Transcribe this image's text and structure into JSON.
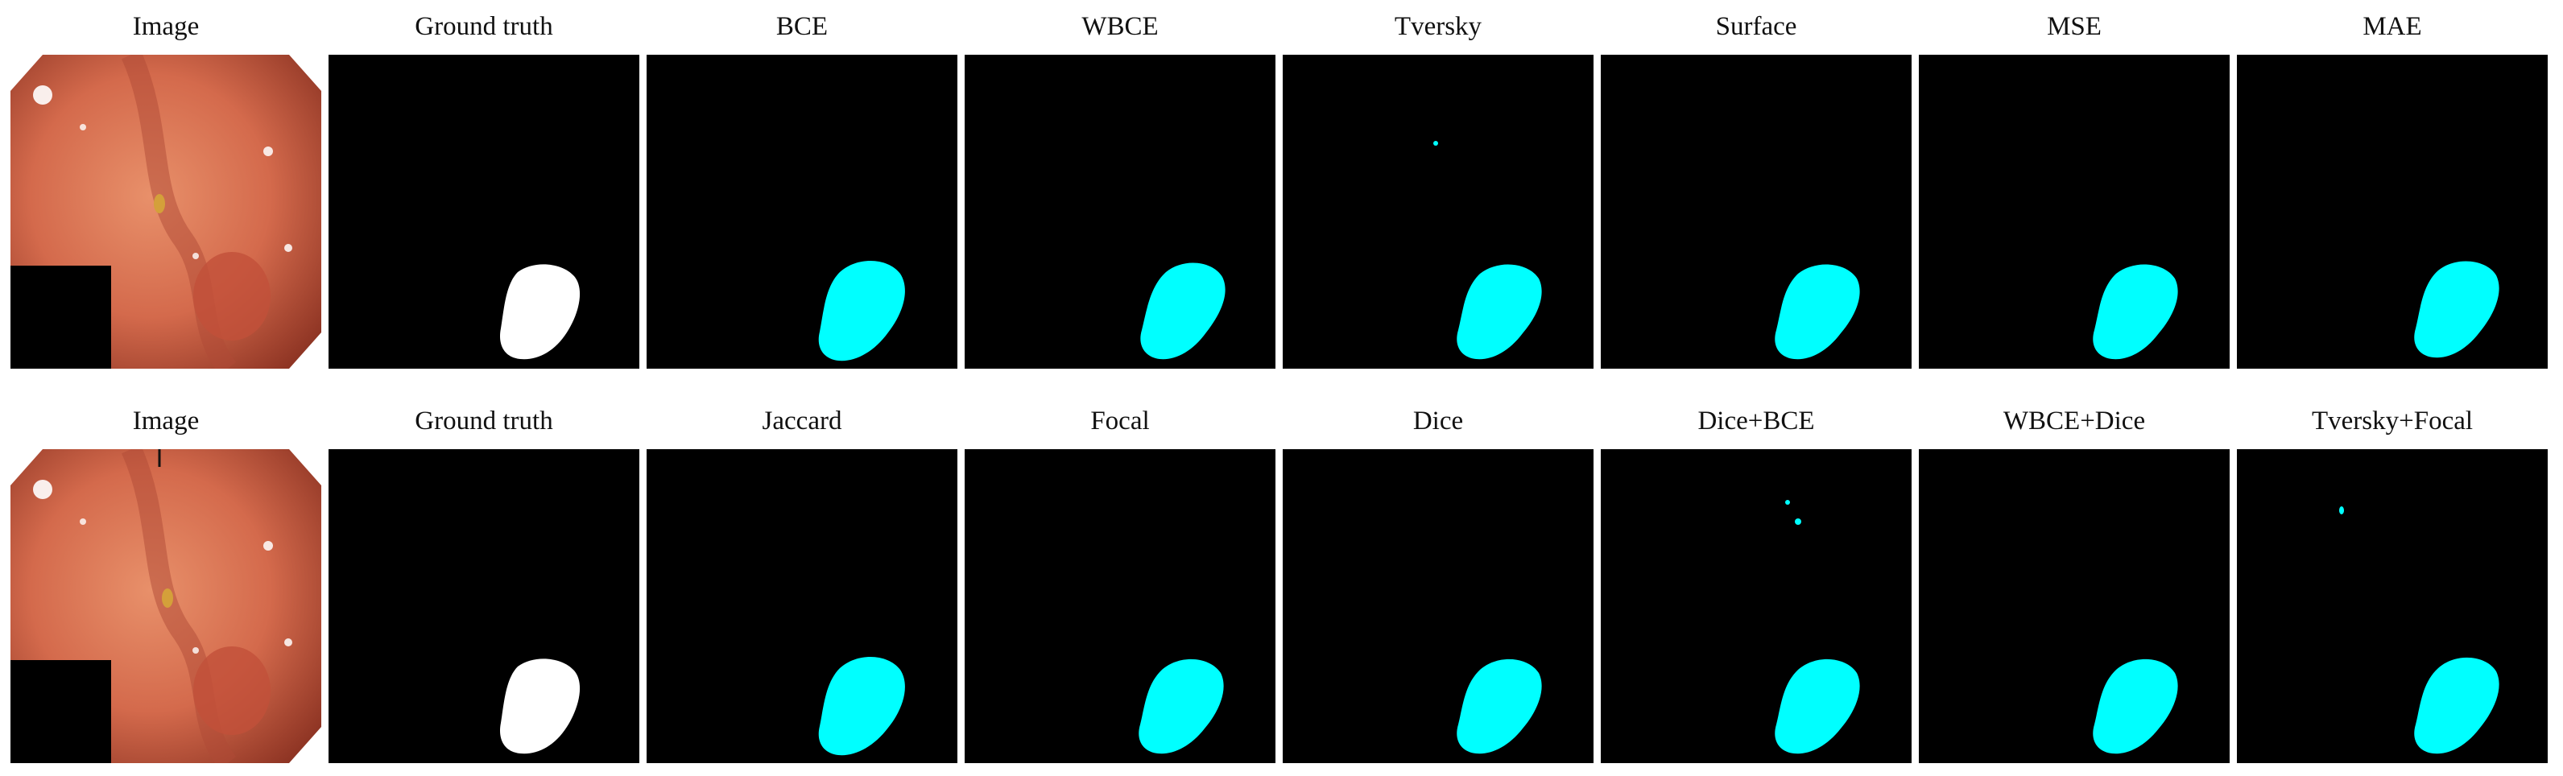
{
  "rows": [
    {
      "cells": [
        {
          "label": "Image",
          "kind": "photo"
        },
        {
          "label": "Ground truth",
          "kind": "mask",
          "color": "#ffffff"
        },
        {
          "label": "BCE",
          "kind": "mask",
          "color": "#00ffff"
        },
        {
          "label": "WBCE",
          "kind": "mask",
          "color": "#00ffff"
        },
        {
          "label": "Tversky",
          "kind": "mask",
          "color": "#00ffff",
          "specks": 1
        },
        {
          "label": "Surface",
          "kind": "mask",
          "color": "#00ffff"
        },
        {
          "label": "MSE",
          "kind": "mask",
          "color": "#00ffff"
        },
        {
          "label": "MAE",
          "kind": "mask",
          "color": "#00ffff"
        }
      ]
    },
    {
      "cells": [
        {
          "label": "Image",
          "kind": "photo"
        },
        {
          "label": "Ground truth",
          "kind": "mask",
          "color": "#ffffff"
        },
        {
          "label": "Jaccard",
          "kind": "mask",
          "color": "#00ffff"
        },
        {
          "label": "Focal",
          "kind": "mask",
          "color": "#00ffff"
        },
        {
          "label": "Dice",
          "kind": "mask",
          "color": "#00ffff"
        },
        {
          "label": "Dice+BCE",
          "kind": "mask",
          "color": "#00ffff",
          "specks": 2
        },
        {
          "label": "WBCE+Dice",
          "kind": "mask",
          "color": "#00ffff"
        },
        {
          "label": "Tversky+Focal",
          "kind": "mask",
          "color": "#00ffff",
          "specks": 1
        }
      ]
    }
  ],
  "colors": {
    "background": "#000000",
    "prediction": "#00ffff",
    "ground_truth": "#ffffff"
  }
}
